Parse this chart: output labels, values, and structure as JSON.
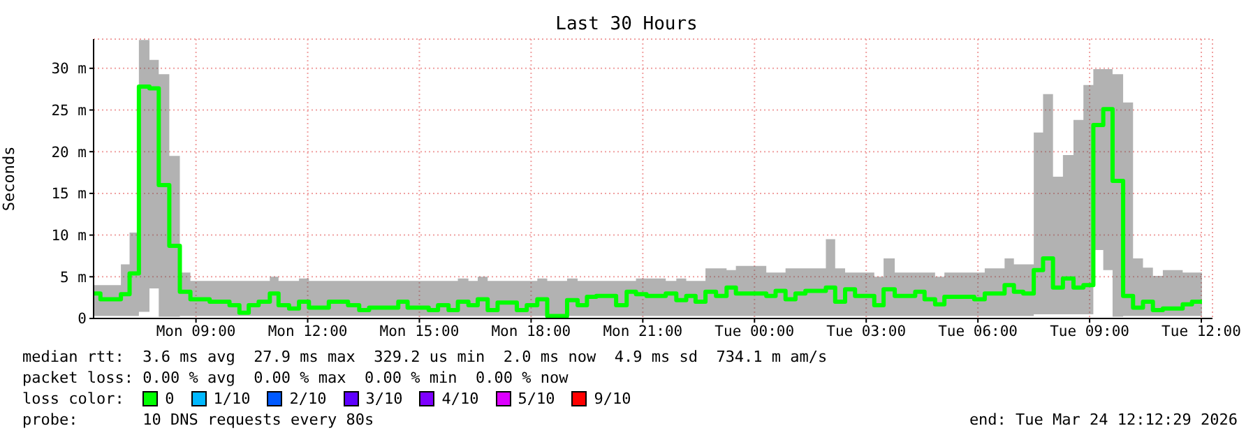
{
  "chart_data": {
    "type": "step",
    "title": "Last 30 Hours",
    "ylabel": "Seconds",
    "legend_title": "loss color:",
    "legend": "bottom left",
    "grid": true,
    "x": [
      "2026-03-23T06:15",
      "2026-03-23T06:26",
      "2026-03-23T06:59",
      "2026-03-23T07:13",
      "2026-03-23T07:28",
      "2026-03-23T07:45",
      "2026-03-23T08:00",
      "2026-03-23T08:17",
      "2026-03-23T08:34",
      "2026-03-23T08:51",
      "2026-03-23T09:22",
      "2026-03-23T09:54",
      "2026-03-23T10:10",
      "2026-03-23T10:25",
      "2026-03-23T10:41",
      "2026-03-23T10:59",
      "2026-03-23T11:13",
      "2026-03-23T11:30",
      "2026-03-23T11:46",
      "2026-03-23T12:02",
      "2026-03-23T12:34",
      "2026-03-23T13:05",
      "2026-03-23T13:23",
      "2026-03-23T13:39",
      "2026-03-23T14:26",
      "2026-03-23T14:41",
      "2026-03-23T15:15",
      "2026-03-23T15:30",
      "2026-03-23T15:47",
      "2026-03-23T16:02",
      "2026-03-23T16:19",
      "2026-03-23T16:34",
      "2026-03-23T16:50",
      "2026-03-23T17:06",
      "2026-03-23T17:37",
      "2026-03-23T17:53",
      "2026-03-23T18:10",
      "2026-03-23T18:26",
      "2026-03-23T18:58",
      "2026-03-23T19:15",
      "2026-03-23T19:30",
      "2026-03-23T19:45",
      "2026-03-23T20:17",
      "2026-03-23T20:34",
      "2026-03-23T20:49",
      "2026-03-23T21:06",
      "2026-03-23T21:37",
      "2026-03-23T21:54",
      "2026-03-23T22:10",
      "2026-03-23T22:25",
      "2026-03-23T22:41",
      "2026-03-23T22:58",
      "2026-03-23T23:15",
      "2026-03-23T23:30",
      "2026-03-24T00:19",
      "2026-03-24T00:34",
      "2026-03-24T00:50",
      "2026-03-24T01:06",
      "2026-03-24T01:22",
      "2026-03-24T01:55",
      "2026-03-24T02:10",
      "2026-03-24T02:26",
      "2026-03-24T02:42",
      "2026-03-24T03:13",
      "2026-03-24T03:28",
      "2026-03-24T03:46",
      "2026-03-24T04:19",
      "2026-03-24T04:34",
      "2026-03-24T04:51",
      "2026-03-24T05:06",
      "2026-03-24T05:54",
      "2026-03-24T06:11",
      "2026-03-24T06:43",
      "2026-03-24T06:58",
      "2026-03-24T07:13",
      "2026-03-24T07:30",
      "2026-03-24T07:45",
      "2026-03-24T08:01",
      "2026-03-24T08:17",
      "2026-03-24T08:34",
      "2026-03-24T08:50",
      "2026-03-24T09:06",
      "2026-03-24T09:22",
      "2026-03-24T09:37",
      "2026-03-24T09:54",
      "2026-03-24T10:10",
      "2026-03-24T10:26",
      "2026-03-24T10:42",
      "2026-03-24T10:58",
      "2026-03-24T11:30",
      "2026-03-24T11:45",
      "2026-03-24T12:01"
    ],
    "series": [
      {
        "name": "0",
        "color": "#00ff00",
        "values": [
          3.0,
          2.3,
          2.9,
          5.4,
          27.8,
          27.6,
          16.0,
          8.7,
          3.2,
          2.3,
          2.0,
          1.6,
          0.7,
          1.6,
          2.0,
          3.0,
          1.6,
          1.2,
          2.0,
          1.3,
          2.0,
          1.6,
          1.0,
          1.3,
          2.0,
          1.3,
          1.0,
          1.6,
          1.0,
          2.0,
          1.6,
          2.3,
          1.0,
          1.9,
          1.0,
          1.6,
          2.3,
          0.3,
          2.2,
          1.6,
          2.6,
          2.7,
          1.6,
          3.2,
          2.9,
          2.7,
          3.0,
          2.2,
          2.7,
          2.0,
          3.2,
          2.7,
          3.7,
          3.0,
          2.7,
          3.3,
          2.3,
          3.0,
          3.3,
          3.7,
          2.0,
          3.5,
          2.7,
          1.6,
          3.5,
          2.7,
          3.2,
          2.3,
          1.7,
          2.6,
          2.3,
          3.0,
          4.0,
          3.2,
          3.0,
          5.8,
          7.2,
          3.7,
          4.8,
          3.7,
          4.0,
          23.2,
          25.1,
          16.5,
          2.7,
          1.3,
          2.0,
          1.0,
          1.2,
          1.7,
          2.0,
          2.0
        ],
        "lower": [
          0.3,
          0.3,
          0.3,
          0.3,
          0.8,
          3.6,
          0.2,
          0.2,
          0.3,
          0.3,
          0.3,
          0.3,
          0.3,
          0.3,
          0.3,
          0.3,
          0.3,
          0.3,
          0.3,
          0.3,
          0.3,
          0.3,
          0.3,
          0.3,
          0.3,
          0.3,
          0.3,
          0.3,
          0.3,
          0.3,
          0.3,
          0.3,
          0.3,
          0.3,
          0.3,
          0.3,
          0.3,
          0.3,
          0.3,
          0.3,
          0.3,
          0.3,
          0.3,
          0.3,
          0.3,
          0.3,
          0.3,
          0.3,
          0.3,
          0.3,
          0.3,
          0.3,
          0.3,
          0.3,
          0.3,
          0.3,
          0.3,
          0.3,
          0.3,
          0.3,
          0.3,
          0.3,
          0.3,
          0.3,
          0.3,
          0.3,
          0.3,
          0.3,
          0.3,
          0.3,
          0.3,
          0.3,
          0.3,
          0.3,
          0.3,
          0.5,
          0.5,
          0.5,
          0.5,
          0.5,
          0.5,
          8.2,
          5.8,
          0.2,
          0.3,
          0.3,
          0.3,
          0.3,
          0.3,
          0.3,
          0.3,
          0.3
        ],
        "upper": [
          4.0,
          4.0,
          6.5,
          10.3,
          33.4,
          31.0,
          29.3,
          19.5,
          5.5,
          4.5,
          4.5,
          4.5,
          4.5,
          4.5,
          4.5,
          5.0,
          4.5,
          4.5,
          4.8,
          4.5,
          4.5,
          4.5,
          4.5,
          4.5,
          4.5,
          4.5,
          4.5,
          4.5,
          4.5,
          4.8,
          4.5,
          5.0,
          4.5,
          4.5,
          4.5,
          4.5,
          4.8,
          4.5,
          4.8,
          4.5,
          4.5,
          4.5,
          4.5,
          4.5,
          4.8,
          4.8,
          4.5,
          4.8,
          4.5,
          4.5,
          6.0,
          6.0,
          5.8,
          6.3,
          5.5,
          5.5,
          6.0,
          6.0,
          6.0,
          9.5,
          6.0,
          5.5,
          5.5,
          5.0,
          7.2,
          5.5,
          5.5,
          5.5,
          5.0,
          5.5,
          5.5,
          6.0,
          7.2,
          6.5,
          6.5,
          22.3,
          26.9,
          17.0,
          19.6,
          23.8,
          28.0,
          29.9,
          29.9,
          29.3,
          25.9,
          7.2,
          6.1,
          5.1,
          5.8,
          5.5,
          5.5,
          5.5
        ]
      },
      {
        "name": "1/10",
        "color": "#00b8ff",
        "values": [
          null,
          null,
          null,
          null,
          null,
          null,
          null,
          null,
          null,
          null,
          null,
          null,
          null,
          null,
          null,
          null,
          null,
          null,
          null,
          null,
          null,
          null,
          null,
          null,
          null,
          null,
          null,
          null,
          null,
          null,
          null,
          null,
          null,
          null,
          null,
          null,
          null,
          null,
          null,
          null,
          null,
          null,
          null,
          null,
          null,
          null,
          null,
          null,
          null,
          null,
          null,
          null,
          null,
          null,
          null,
          null,
          null,
          null,
          null,
          null,
          null,
          null,
          null,
          null,
          null,
          null,
          null,
          null,
          null,
          null,
          null,
          null,
          null,
          null,
          null,
          null,
          null,
          null,
          null,
          null,
          null,
          null,
          null,
          null,
          null,
          null,
          null,
          null,
          null,
          null,
          null,
          null
        ]
      },
      {
        "name": "2/10",
        "color": "#0059ff",
        "values": [
          null,
          null,
          null,
          null,
          null,
          null,
          null,
          null,
          null,
          null,
          null,
          null,
          null,
          null,
          null,
          null,
          null,
          null,
          null,
          null,
          null,
          null,
          null,
          null,
          null,
          null,
          null,
          null,
          null,
          null,
          null,
          null,
          null,
          null,
          null,
          null,
          null,
          null,
          null,
          null,
          null,
          null,
          null,
          null,
          null,
          null,
          null,
          null,
          null,
          null,
          null,
          null,
          null,
          null,
          null,
          null,
          null,
          null,
          null,
          null,
          null,
          null,
          null,
          null,
          null,
          null,
          null,
          null,
          null,
          null,
          null,
          null,
          null,
          null,
          null,
          null,
          null,
          null,
          null,
          null,
          null,
          null,
          null,
          null,
          null,
          null,
          null,
          null,
          null,
          null,
          null,
          null
        ]
      },
      {
        "name": "3/10",
        "color": "#5e00ff",
        "values": [
          null,
          null,
          null,
          null,
          null,
          null,
          null,
          null,
          null,
          null,
          null,
          null,
          null,
          null,
          null,
          null,
          null,
          null,
          null,
          null,
          null,
          null,
          null,
          null,
          null,
          null,
          null,
          null,
          null,
          null,
          null,
          null,
          null,
          null,
          null,
          null,
          null,
          null,
          null,
          null,
          null,
          null,
          null,
          null,
          null,
          null,
          null,
          null,
          null,
          null,
          null,
          null,
          null,
          null,
          null,
          null,
          null,
          null,
          null,
          null,
          null,
          null,
          null,
          null,
          null,
          null,
          null,
          null,
          null,
          null,
          null,
          null,
          null,
          null,
          null,
          null,
          null,
          null,
          null,
          null,
          null,
          null,
          null,
          null,
          null,
          null,
          null,
          null,
          null,
          null,
          null,
          null
        ]
      },
      {
        "name": "4/10",
        "color": "#7e00ff",
        "values": [
          null,
          null,
          null,
          null,
          null,
          null,
          null,
          null,
          null,
          null,
          null,
          null,
          null,
          null,
          null,
          null,
          null,
          null,
          null,
          null,
          null,
          null,
          null,
          null,
          null,
          null,
          null,
          null,
          null,
          null,
          null,
          null,
          null,
          null,
          null,
          null,
          null,
          null,
          null,
          null,
          null,
          null,
          null,
          null,
          null,
          null,
          null,
          null,
          null,
          null,
          null,
          null,
          null,
          null,
          null,
          null,
          null,
          null,
          null,
          null,
          null,
          null,
          null,
          null,
          null,
          null,
          null,
          null,
          null,
          null,
          null,
          null,
          null,
          null,
          null,
          null,
          null,
          null,
          null,
          null,
          null,
          null,
          null,
          null,
          null,
          null,
          null,
          null,
          null,
          null,
          null,
          null
        ]
      },
      {
        "name": "5/10",
        "color": "#dd00ff",
        "values": [
          null,
          null,
          null,
          null,
          null,
          null,
          null,
          null,
          null,
          null,
          null,
          null,
          null,
          null,
          null,
          null,
          null,
          null,
          null,
          null,
          null,
          null,
          null,
          null,
          null,
          null,
          null,
          null,
          null,
          null,
          null,
          null,
          null,
          null,
          null,
          null,
          null,
          null,
          null,
          null,
          null,
          null,
          null,
          null,
          null,
          null,
          null,
          null,
          null,
          null,
          null,
          null,
          null,
          null,
          null,
          null,
          null,
          null,
          null,
          null,
          null,
          null,
          null,
          null,
          null,
          null,
          null,
          null,
          null,
          null,
          null,
          null,
          null,
          null,
          null,
          null,
          null,
          null,
          null,
          null,
          null,
          null,
          null,
          null,
          null,
          null,
          null,
          null,
          null,
          null,
          null,
          null
        ]
      },
      {
        "name": "9/10",
        "color": "#ff0000",
        "values": [
          null,
          null,
          null,
          null,
          null,
          null,
          null,
          null,
          null,
          null,
          null,
          null,
          null,
          null,
          null,
          null,
          null,
          null,
          null,
          null,
          null,
          null,
          null,
          null,
          null,
          null,
          null,
          null,
          null,
          null,
          null,
          null,
          null,
          null,
          null,
          null,
          null,
          null,
          null,
          null,
          null,
          null,
          null,
          null,
          null,
          null,
          null,
          null,
          null,
          null,
          null,
          null,
          null,
          null,
          null,
          null,
          null,
          null,
          null,
          null,
          null,
          null,
          null,
          null,
          null,
          null,
          null,
          null,
          null,
          null,
          null,
          null,
          null,
          null,
          null,
          null,
          null,
          null,
          null,
          null,
          null,
          null,
          null,
          null,
          null,
          null,
          null,
          null,
          null,
          null,
          null,
          null
        ]
      }
    ],
    "xlim": [
      "2026-03-23T06:15",
      "2026-03-24T12:18"
    ],
    "xticks": [
      {
        "value": "2026-03-23T09:00",
        "label": "Mon 09:00"
      },
      {
        "value": "2026-03-23T12:00",
        "label": "Mon 12:00"
      },
      {
        "value": "2026-03-23T15:00",
        "label": "Mon 15:00"
      },
      {
        "value": "2026-03-23T18:00",
        "label": "Mon 18:00"
      },
      {
        "value": "2026-03-23T21:00",
        "label": "Mon 21:00"
      },
      {
        "value": "2026-03-24T00:00",
        "label": "Tue 00:00"
      },
      {
        "value": "2026-03-24T03:00",
        "label": "Tue 03:00"
      },
      {
        "value": "2026-03-24T06:00",
        "label": "Tue 06:00"
      },
      {
        "value": "2026-03-24T09:00",
        "label": "Tue 09:00"
      },
      {
        "value": "2026-03-24T12:00",
        "label": "Tue 12:00"
      }
    ],
    "ylim": [
      0,
      33.5
    ],
    "yticks": [
      {
        "value": 0,
        "label": "0"
      },
      {
        "value": 5,
        "label": "5 m"
      },
      {
        "value": 10,
        "label": "10 m"
      },
      {
        "value": 15,
        "label": "15 m"
      },
      {
        "value": 20,
        "label": "20 m"
      },
      {
        "value": 25,
        "label": "25 m"
      },
      {
        "value": 30,
        "label": "30 m"
      }
    ],
    "annotations": [
      "median rtt:  3.6 ms avg  27.9 ms max  329.2 us min  2.0 ms now  4.9 ms sd  734.1 m am/s",
      "packet loss: 0.00 % avg  0.00 % max  0.00 % min  0.00 % now",
      "probe:       10 DNS requests every 80s",
      "end: Tue Mar 24 12:12:29 2026"
    ]
  }
}
